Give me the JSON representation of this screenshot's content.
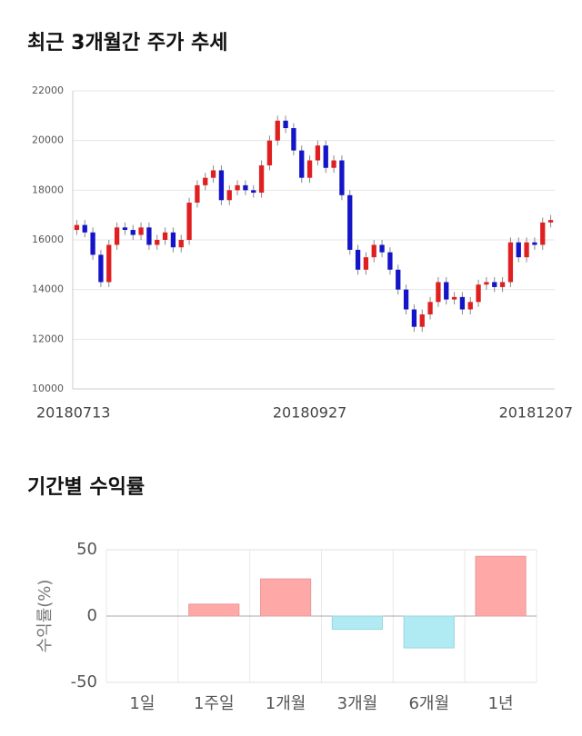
{
  "chart_data": [
    {
      "type": "candlestick",
      "title": "최근 3개월간 주가 추세",
      "categories": [
        "20180713",
        null,
        null,
        null,
        null,
        null,
        null,
        null,
        null,
        null,
        null,
        null,
        null,
        null,
        null,
        null,
        null,
        null,
        null,
        null,
        null,
        null,
        null,
        null,
        null,
        null,
        null,
        null,
        null,
        "20180927",
        null,
        null,
        null,
        null,
        null,
        null,
        null,
        null,
        null,
        null,
        null,
        null,
        null,
        null,
        null,
        null,
        null,
        null,
        null,
        null,
        null,
        null,
        null,
        null,
        null,
        null,
        null,
        null,
        null,
        "20181207"
      ],
      "open": [
        16400,
        16600,
        16300,
        15400,
        14300,
        15800,
        16500,
        16400,
        16200,
        16500,
        15800,
        16000,
        16300,
        15700,
        16000,
        17500,
        18200,
        18500,
        18800,
        17600,
        18000,
        18200,
        18000,
        17900,
        19000,
        20000,
        20800,
        20500,
        19600,
        18500,
        19200,
        19800,
        18900,
        19200,
        17800,
        15600,
        14800,
        15300,
        15800,
        15500,
        14800,
        14000,
        13200,
        12500,
        13000,
        13500,
        14300,
        13600,
        13700,
        13200,
        13500,
        14200,
        14300,
        14100,
        14300,
        15900,
        15300,
        15900,
        15800,
        16700
      ],
      "high": [
        16800,
        16800,
        16500,
        15600,
        16000,
        16700,
        16700,
        16600,
        16700,
        16700,
        16200,
        16500,
        16500,
        16200,
        17700,
        18400,
        18700,
        19000,
        19000,
        18200,
        18400,
        18400,
        18200,
        19200,
        20200,
        21000,
        21000,
        20700,
        19800,
        19400,
        20000,
        20000,
        19400,
        19400,
        18000,
        15800,
        15500,
        16000,
        16000,
        15700,
        15000,
        14200,
        13400,
        13200,
        13700,
        14500,
        14500,
        13900,
        13900,
        13700,
        14400,
        14500,
        14500,
        14500,
        16100,
        16100,
        16100,
        16100,
        16900,
        17000
      ],
      "low": [
        16200,
        16100,
        15200,
        14100,
        14100,
        15600,
        16200,
        16000,
        16000,
        15600,
        15600,
        15800,
        15500,
        15500,
        15800,
        17300,
        18000,
        18300,
        17400,
        17400,
        17800,
        17800,
        17700,
        17700,
        18800,
        19800,
        20300,
        19400,
        18300,
        18300,
        19000,
        18700,
        18700,
        17600,
        15400,
        14600,
        14600,
        15100,
        15300,
        14600,
        13800,
        13000,
        12300,
        12300,
        12800,
        13300,
        13400,
        13400,
        13000,
        13000,
        13300,
        14000,
        13900,
        13900,
        14100,
        15100,
        15100,
        15600,
        15600,
        16500
      ],
      "close": [
        16600,
        16300,
        15400,
        14300,
        15800,
        16500,
        16400,
        16200,
        16500,
        15800,
        16000,
        16300,
        15700,
        16000,
        17500,
        18200,
        18500,
        18800,
        17600,
        18000,
        18200,
        18000,
        17900,
        19000,
        20000,
        20800,
        20500,
        19600,
        18500,
        19200,
        19800,
        18900,
        19200,
        17800,
        15600,
        14800,
        15300,
        15800,
        15500,
        14800,
        14000,
        13200,
        12500,
        13000,
        13500,
        14300,
        13600,
        13700,
        13200,
        13500,
        14200,
        14300,
        14100,
        14300,
        15900,
        15300,
        15900,
        15800,
        16700,
        16800
      ],
      "up_color": "#e02020",
      "down_color": "#1414c8",
      "ylim": [
        10000,
        22000
      ],
      "yticks": [
        10000,
        12000,
        14000,
        16000,
        18000,
        20000,
        22000
      ],
      "grid": true
    },
    {
      "type": "bar",
      "title": "기간별 수익률",
      "y_label": "수익률(%)",
      "categories": [
        "1일",
        "1주일",
        "1개월",
        "3개월",
        "6개월",
        "1년"
      ],
      "values": [
        0,
        9,
        28,
        -10,
        -24,
        45
      ],
      "positive_color": "#ffa8a8",
      "negative_color": "#b0eaf2",
      "ylim": [
        -50,
        50
      ],
      "yticks": [
        -50,
        0,
        50
      ],
      "grid": true
    }
  ]
}
